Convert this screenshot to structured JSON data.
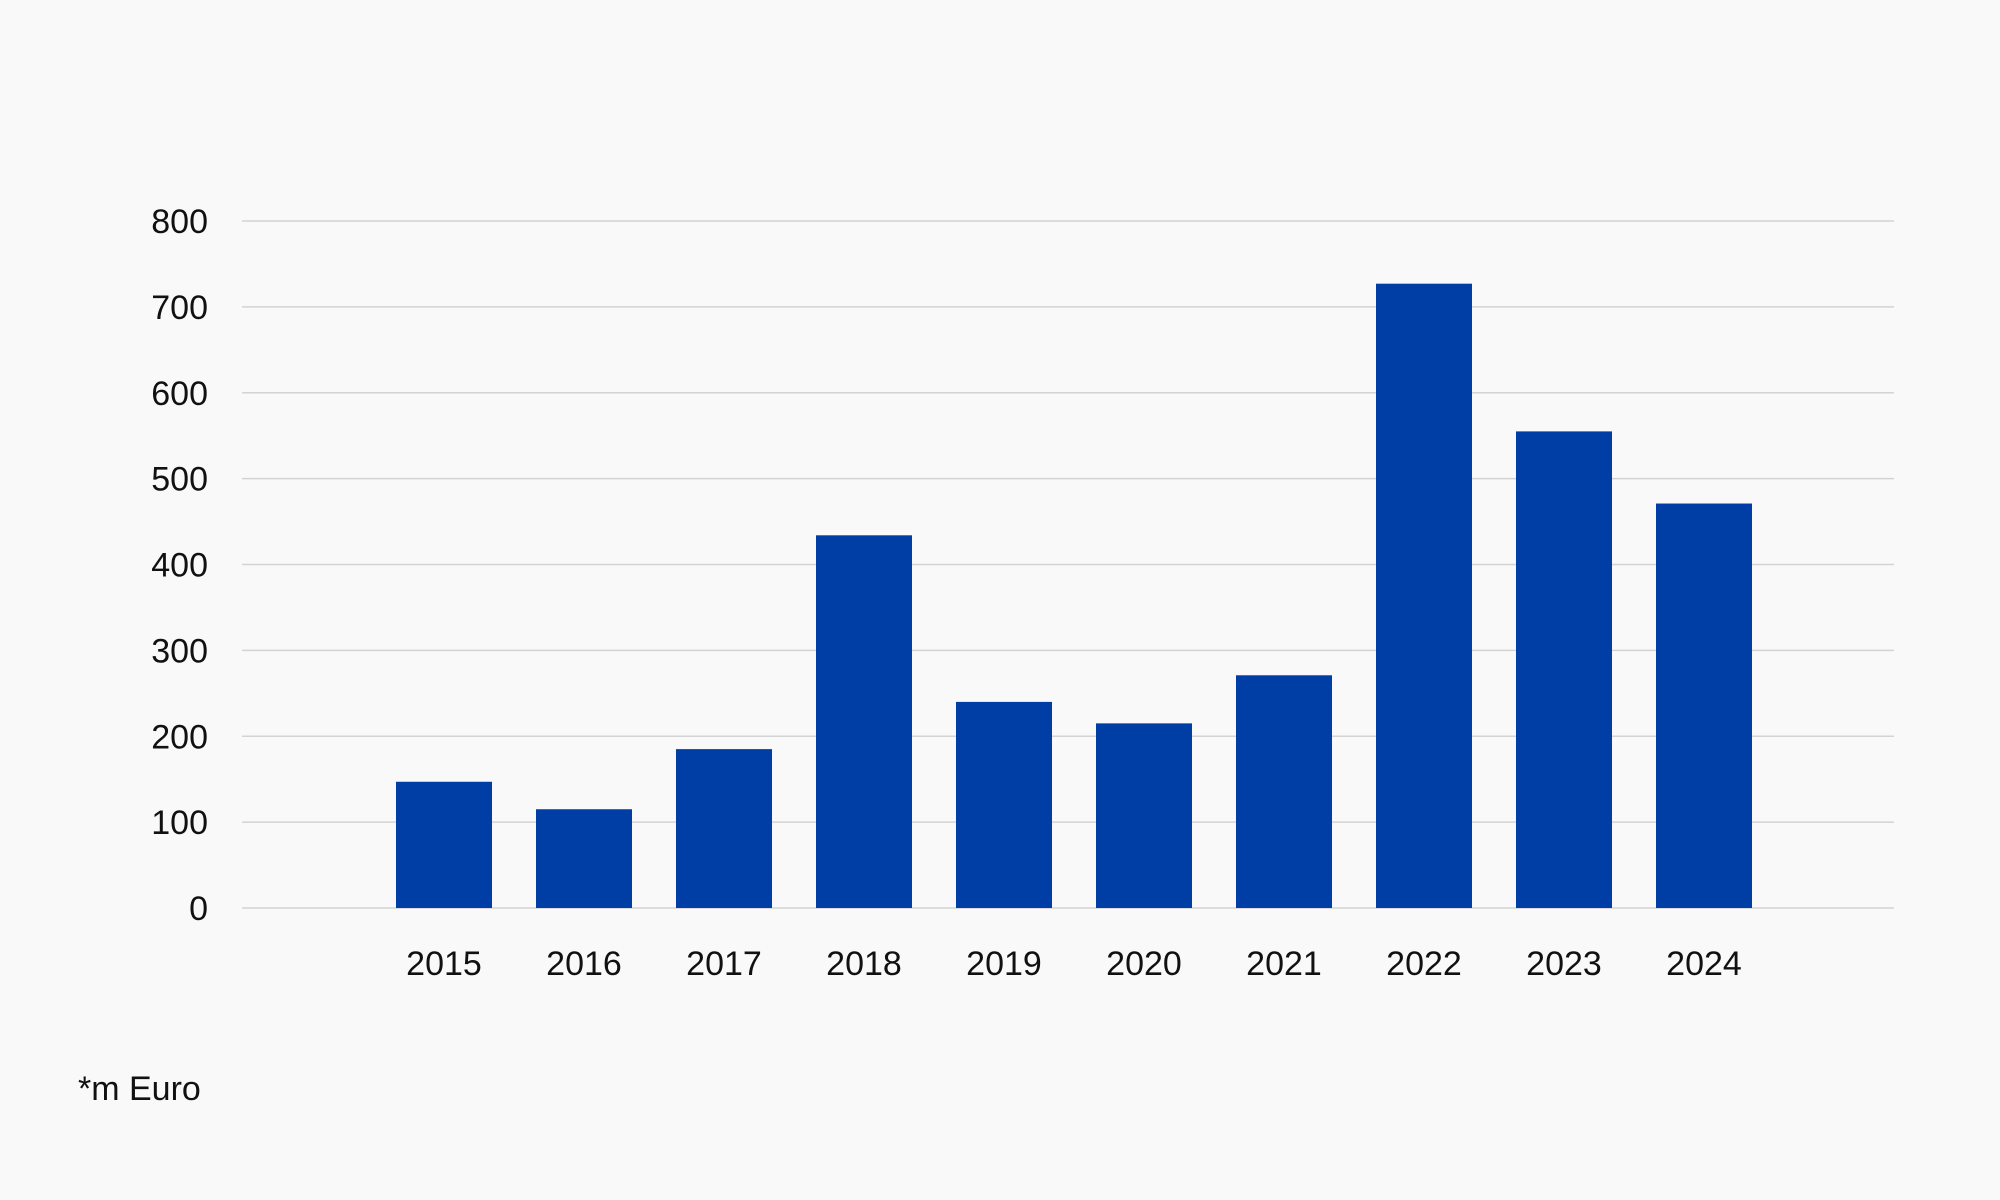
{
  "chart_data": {
    "type": "bar",
    "categories": [
      "2015",
      "2016",
      "2017",
      "2018",
      "2019",
      "2020",
      "2021",
      "2022",
      "2023",
      "2024"
    ],
    "values": [
      147,
      115,
      185,
      434,
      240,
      215,
      271,
      727,
      555,
      471
    ],
    "yticks": [
      "0",
      "100",
      "200",
      "300",
      "400",
      "500",
      "600",
      "700",
      "800"
    ],
    "ylim": [
      0,
      800
    ],
    "grid": true,
    "bar_color": "#003da5",
    "grid_color": "#d3d3d3"
  },
  "footnote": "*m Euro"
}
